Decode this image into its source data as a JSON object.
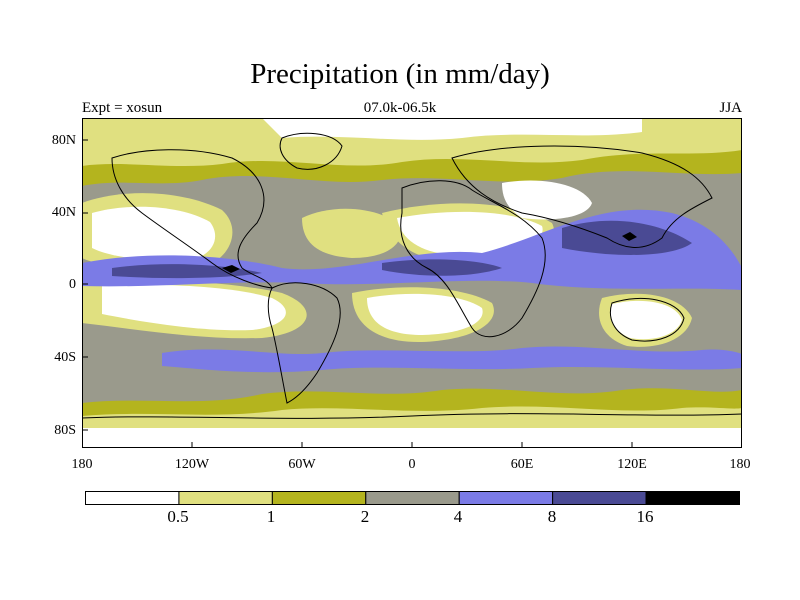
{
  "title": "Precipitation (in mm/day)",
  "subtitle_left": "Expt = xosun",
  "subtitle_center": "07.0k-06.5k",
  "subtitle_right": "JJA",
  "lat_labels": [
    "80N",
    "40N",
    "0",
    "40S",
    "80S"
  ],
  "lon_labels": [
    "180",
    "120W",
    "60W",
    "0",
    "60E",
    "120E",
    "180"
  ],
  "colorbar": {
    "colors": [
      "#ffffff",
      "#e0e080",
      "#b4b41e",
      "#9a9a8c",
      "#7b7be6",
      "#4a4a94",
      "#000000"
    ],
    "labels": [
      "0.5",
      "1",
      "2",
      "4",
      "8",
      "16"
    ]
  }
}
